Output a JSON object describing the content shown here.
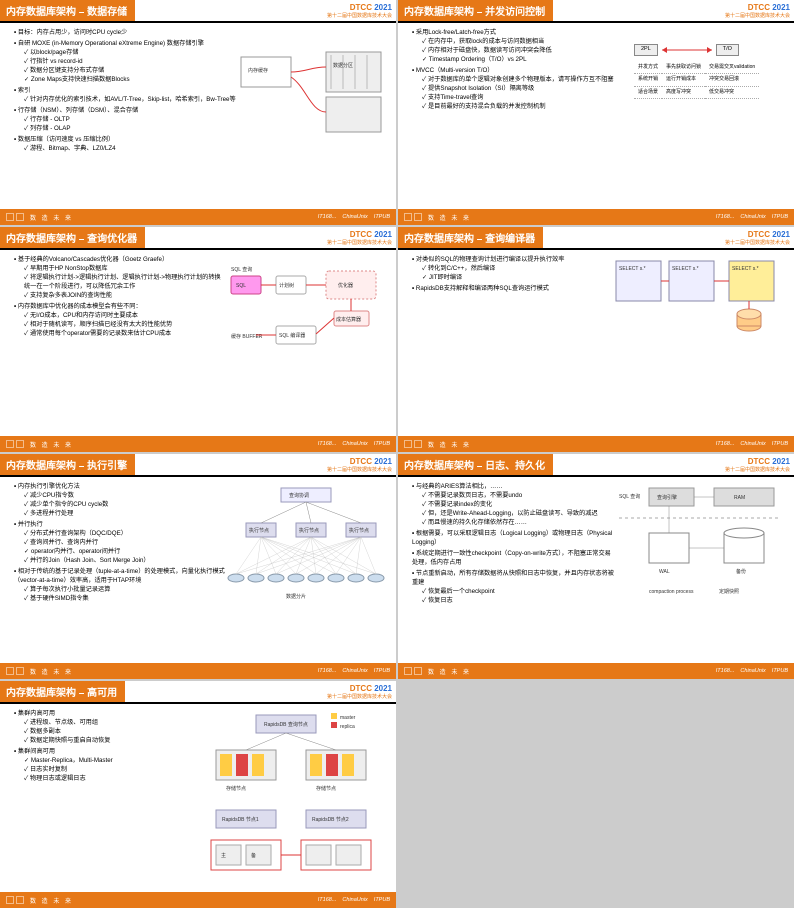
{
  "brand": {
    "name": "DTCC",
    "year": "2021",
    "sub": "第十二届中国数据库技术大会"
  },
  "footer": {
    "text": "数 造 未 来",
    "right": [
      "IT168...",
      "ChinaUnix",
      "ITPUB"
    ]
  },
  "slides": [
    {
      "title": "内存数据库架构 – 数据存储",
      "bullets": [
        {
          "t": "目标：内存占用少，访问时CPU cycle少"
        },
        {
          "t": "自研 MOXE (in-Memory Operational eXtreme Engine) 数据存储引擎",
          "sub": [
            "以block/page存储",
            "行指针 vs record-id",
            "数据分区键支持分布式存储",
            "Zone Maps支持快速扫描数据Blocks"
          ]
        },
        {
          "t": "索引",
          "sub": [
            "针对内存优化的索引技术，如AVL/T-Tree，Skip-list，哈希索引，Bw-Tree等"
          ]
        },
        {
          "t": "行存储（NSM）、列存储（DSM）、混合存储",
          "sub": [
            "行存储 - OLTP",
            "列存储 - OLAP"
          ]
        },
        {
          "t": "数据压缩（访问速度 vs 压缩比例）",
          "sub": [
            "游程、Bitmap、字典、LZ0/LZ4"
          ]
        }
      ],
      "diagram": "storage"
    },
    {
      "title": "内存数据库架构 – 并发访问控制",
      "bullets": [
        {
          "t": "采用Lock-free/Latch-free方式",
          "sub": [
            "在内存中，获取lock的成本与访问数据相当",
            "内存相对于磁盘快，数据读写访问冲突会降低",
            "Timestamp Ordering（T/O）vs 2PL"
          ]
        },
        {
          "t": "MVCC（Multi-version T/O）",
          "sub": [
            "对于数据库的单个逻辑对象创建多个物理版本，请写操作方互不阻塞",
            "提供Snapshot Isolation（SI）隔离等级",
            "支持Time-travel查询",
            "是目前最好的支持混合负载的并发控制机制"
          ]
        }
      ],
      "diagram": "concurrency"
    },
    {
      "title": "内存数据库架构 – 查询优化器",
      "bullets": [
        {
          "t": "基于经典的Volcano/Cascades优化器（Goetz Graefe）",
          "sub": [
            "早期用于HP NonStop数据库",
            "将逻辑执行计划->逻辑执行计划、逻辑执行计划->物理执行计划的转换统一在一个阶段进行，可以降低冗余工作",
            "支持复杂多表JOIN的查询性能"
          ]
        },
        {
          "t": "内存数据库中优化器的成本模型会有些不同：",
          "sub": [
            "无I/O成本，CPU和内存访问时主要成本",
            "相对于随机读写，顺序扫描已经没有太大的性能优势",
            "通常使用每个operator需要的记录数来估计CPU成本"
          ]
        }
      ],
      "diagram": "optimizer"
    },
    {
      "title": "内存数据库架构 – 查询编译器",
      "bullets": [
        {
          "t": "对类似的SQL的物理查询计划进行编译以提升执行效率",
          "sub": [
            "转化到C/C++，然后编译",
            "JIT即时编译"
          ]
        },
        {
          "t": "RapidsDB支持解释和编译两种SQL查询运行模式"
        }
      ],
      "diagram": "compiler"
    },
    {
      "title": "内存数据库架构 – 执行引擎",
      "bullets": [
        {
          "t": "内存执行引擎优化方法",
          "sub": [
            "减少CPU指令数",
            "减少单个指令的CPU cycle数",
            "多进程并行处理"
          ]
        },
        {
          "t": "并行执行",
          "sub": [
            "分布式并行查询架构（DQC/DQE）",
            "查询间并行、查询内并行",
            "operator内并行、operator间并行",
            "并行的Join（Hash Join、Sort Merge Join）"
          ]
        },
        {
          "t": "相对于传统的基于记录处理（tuple-at-a-time）的处理模式，向量化执行模式（vector-at-a-time）效率高，适用于HTAP环境",
          "sub": [
            "算子每次执行小批量记录运算",
            "基于硬件SIMD指令集"
          ]
        }
      ],
      "diagram": "exec"
    },
    {
      "title": "内存数据库架构 – 日志、持久化",
      "bullets": [
        {
          "t": "与经典的ARIES算法相比，……",
          "sub": [
            "不需要记录数页日志，不需要undo",
            "不需要记录index的变化",
            "但，还是Write-Ahead-Logging，以防止磁盘读写、导致的减迟",
            "而且慢速的持久化存储依然存在……"
          ]
        },
        {
          "t": "根据需要，可以采取逻辑日志（Logical Logging）或物理日志（Physical Logging）"
        },
        {
          "t": "系统定期进行一致性checkpoint（Copy-on-write方式），不阻塞正常交易处理，低内存占用"
        },
        {
          "t": "节点重新启动，所有存储数据将从快照和日志中恢复，并且内存状态将被重建",
          "sub": [
            "恢复最后一个checkpoint",
            "恢复日志"
          ]
        }
      ],
      "diagram": "log"
    },
    {
      "title": "内存数据库架构 – 高可用",
      "bullets": [
        {
          "t": "集群内高可用",
          "sub": [
            "进程级、节点级、可用组",
            "数据多副本",
            "数据定期快照与重启自动恢复"
          ]
        },
        {
          "t": "集群间高可用",
          "sub": [
            "Master-Replica，Multi-Master",
            "日志实时复制",
            "物理日志或逻辑日志"
          ]
        }
      ],
      "diagram": "ha"
    }
  ],
  "diagrams": {
    "storage": {
      "labels": {
        "a": "内存缓存",
        "b": "数据分区"
      }
    },
    "concurrency": {
      "left": "2PL",
      "right": "T/O",
      "rows": [
        [
          "并发方式",
          "事先获取访问锁",
          "交易需交叉validation"
        ],
        [
          "系统开销",
          "运行开销成本",
          "冲突交易回滚"
        ],
        [
          "适合场景",
          "高度写冲突",
          "低交易冲突"
        ]
      ]
    },
    "optimizer": {
      "in": "SQL 查询",
      "plan": "计划树",
      "opt": "优化器",
      "sqlopt": "SQL 编译器",
      "filter": "成本估算器",
      "buf": "缓存 BUFFER"
    },
    "compiler": {
      "s1": "SELECT s.*\\nFROM r JOIN s\\nON r.a = s.b\\nWHERE r.c = 5",
      "s2": "SELECT s.*\\nFROM r JOIN s\\nON r.a = s.b\\nWHERE r.c = 7",
      "s3": "SELECT s.*\\nFROM r JOIN s\\nON r.a = s.b\\nWHERE r.c = ?"
    },
    "exec": {
      "top": "查询协调",
      "mid": "执行节点",
      "leaf": "数据分片"
    },
    "log": {
      "sql": "SQL 查询",
      "qe": "查询引擎",
      "ram": "RAM",
      "wal": "WAL",
      "bak": "备份",
      "cp": "compaction process",
      "snap": "定期快照"
    },
    "ha": {
      "agg": "RapidsDB 查询节点",
      "n1": "RapidsDB 节点1",
      "n2": "RapidsDB 节点2",
      "m": "master",
      "r": "replica",
      "c": "存储节点",
      "a": "主",
      "b": "备"
    }
  }
}
